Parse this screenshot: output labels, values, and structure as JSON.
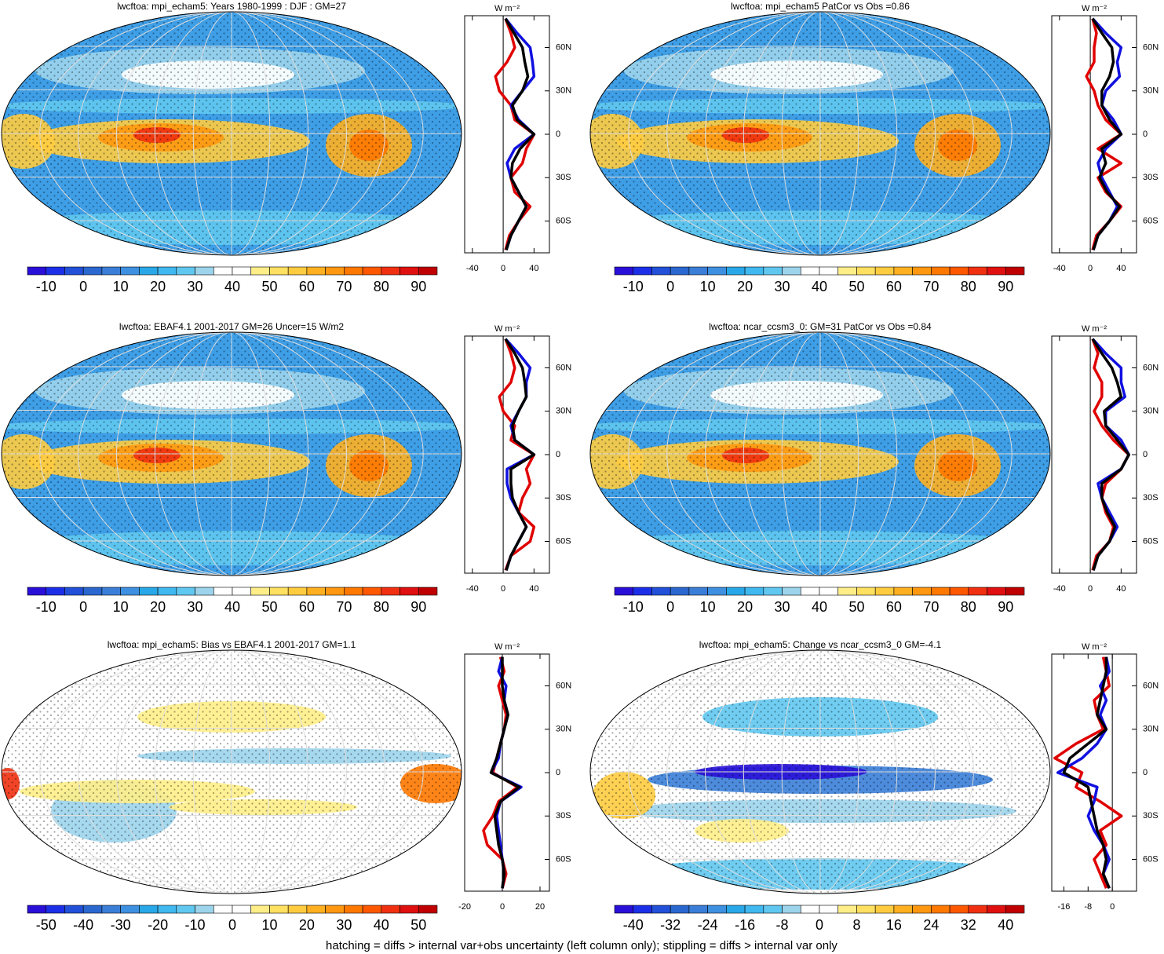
{
  "palette": [
    "#2a0fd8",
    "#1c2fe8",
    "#2250d8",
    "#2a68d0",
    "#3a7ed8",
    "#3e90e0",
    "#28a8e8",
    "#40b8f0",
    "#60c8f0",
    "#9cd4ec",
    "#ffffff",
    "#ffffff",
    "#ffee88",
    "#ffe060",
    "#ffcc40",
    "#ffb020",
    "#ff9810",
    "#ff7800",
    "#ff5800",
    "#f03010",
    "#e01010",
    "#c00000"
  ],
  "footer": "hatching = diffs > internal var+obs uncertainty (left column only); stippling = diffs > internal var only",
  "chart_data": [
    {
      "type": "map",
      "title": "lwcftoa: mpi_echam5: Years 1980-1999 : DJF : GM=27",
      "clim": [
        -15,
        95
      ],
      "cticks": [
        -10,
        0,
        10,
        20,
        30,
        40,
        50,
        60,
        70,
        80,
        90
      ],
      "profile": {
        "type": "line",
        "units": "W m⁻²",
        "xlim": [
          -50,
          60
        ],
        "xticks": [
          -40,
          0,
          40
        ],
        "ylim": [
          -82,
          82
        ],
        "yticks": [
          {
            "value": 60,
            "label": "60N"
          },
          {
            "value": 30,
            "label": "30N"
          },
          0,
          {
            "value": -30,
            "label": "30S"
          },
          {
            "value": -60,
            "label": "60S"
          }
        ],
        "lat": [
          80,
          70,
          60,
          50,
          40,
          30,
          20,
          10,
          0,
          -10,
          -20,
          -30,
          -40,
          -50,
          -60,
          -70,
          -80
        ],
        "series": [
          {
            "color": "#e00000",
            "values": [
              3,
              10,
              15,
              5,
              -10,
              -5,
              10,
              15,
              40,
              30,
              25,
              10,
              15,
              35,
              20,
              8,
              3
            ]
          },
          {
            "color": "#1010e0",
            "values": [
              3,
              18,
              35,
              38,
              40,
              25,
              10,
              20,
              40,
              15,
              5,
              10,
              20,
              30,
              20,
              10,
              4
            ]
          },
          {
            "color": "#000000",
            "values": [
              3,
              14,
              25,
              28,
              32,
              25,
              12,
              18,
              40,
              22,
              12,
              10,
              20,
              30,
              20,
              10,
              4
            ]
          }
        ]
      }
    },
    {
      "type": "map",
      "title": "lwcftoa: mpi_echam5 PatCor vs Obs =0.86",
      "clim": [
        -15,
        95
      ],
      "cticks": [
        -10,
        0,
        10,
        20,
        30,
        40,
        50,
        60,
        70,
        80,
        90
      ],
      "profile": {
        "type": "line",
        "units": "W m⁻²",
        "xlim": [
          -50,
          60
        ],
        "xticks": [
          -40,
          0,
          40
        ],
        "ylim": [
          -82,
          82
        ],
        "yticks": [
          {
            "value": 60,
            "label": "60N"
          },
          {
            "value": 30,
            "label": "30N"
          },
          0,
          {
            "value": -30,
            "label": "30S"
          },
          {
            "value": -60,
            "label": "60S"
          }
        ],
        "lat": [
          80,
          70,
          60,
          50,
          40,
          30,
          20,
          10,
          0,
          -10,
          -20,
          -30,
          -40,
          -50,
          -60,
          -70,
          -80
        ],
        "series": [
          {
            "color": "#e00000",
            "values": [
              3,
              8,
              5,
              5,
              -5,
              5,
              10,
              20,
              40,
              10,
              40,
              10,
              20,
              40,
              25,
              8,
              3
            ]
          },
          {
            "color": "#1010e0",
            "values": [
              3,
              20,
              40,
              35,
              38,
              20,
              15,
              30,
              40,
              20,
              10,
              15,
              25,
              35,
              25,
              10,
              4
            ]
          },
          {
            "color": "#000000",
            "values": [
              3,
              15,
              28,
              30,
              25,
              15,
              15,
              25,
              40,
              15,
              20,
              12,
              22,
              38,
              25,
              10,
              4
            ]
          }
        ]
      }
    },
    {
      "type": "map",
      "title": "lwcftoa: EBAF4.1 2001-2017 GM=26 Uncer=15 W/m2",
      "clim": [
        -15,
        95
      ],
      "cticks": [
        -10,
        0,
        10,
        20,
        30,
        40,
        50,
        60,
        70,
        80,
        90
      ],
      "profile": {
        "type": "line",
        "units": "W m⁻²",
        "xlim": [
          -50,
          60
        ],
        "xticks": [
          -40,
          0,
          40
        ],
        "ylim": [
          -82,
          82
        ],
        "yticks": [
          {
            "value": 60,
            "label": "60N"
          },
          {
            "value": 30,
            "label": "30N"
          },
          0,
          {
            "value": -30,
            "label": "30S"
          },
          {
            "value": -60,
            "label": "60S"
          }
        ],
        "lat": [
          80,
          70,
          60,
          50,
          40,
          30,
          20,
          10,
          0,
          -10,
          -20,
          -30,
          -40,
          -50,
          -60,
          -70,
          -80
        ],
        "series": [
          {
            "color": "#e00000",
            "values": [
              3,
              10,
              15,
              10,
              -5,
              0,
              15,
              10,
              40,
              30,
              35,
              25,
              20,
              40,
              35,
              10,
              3
            ]
          },
          {
            "color": "#1010e0",
            "values": [
              3,
              20,
              35,
              30,
              30,
              20,
              10,
              15,
              40,
              5,
              5,
              10,
              20,
              30,
              20,
              10,
              4
            ]
          },
          {
            "color": "#000000",
            "values": [
              3,
              15,
              25,
              28,
              30,
              20,
              12,
              15,
              40,
              10,
              10,
              12,
              20,
              30,
              20,
              10,
              4
            ]
          }
        ]
      }
    },
    {
      "type": "map",
      "title": "lwcftoa: ncar_ccsm3_0: GM=31 PatCor vs Obs =0.84",
      "clim": [
        -15,
        95
      ],
      "cticks": [
        -10,
        0,
        10,
        20,
        30,
        40,
        50,
        60,
        70,
        80,
        90
      ],
      "profile": {
        "type": "line",
        "units": "W m⁻²",
        "xlim": [
          -50,
          60
        ],
        "xticks": [
          -40,
          0,
          40
        ],
        "ylim": [
          -82,
          82
        ],
        "yticks": [
          {
            "value": 60,
            "label": "60N"
          },
          {
            "value": 30,
            "label": "30N"
          },
          0,
          {
            "value": -30,
            "label": "30S"
          },
          {
            "value": -60,
            "label": "60S"
          }
        ],
        "lat": [
          80,
          70,
          60,
          50,
          40,
          30,
          20,
          10,
          0,
          -10,
          -20,
          -30,
          -40,
          -50,
          -60,
          -70,
          -80
        ],
        "series": [
          {
            "color": "#e00000",
            "values": [
              3,
              10,
              5,
              15,
              15,
              5,
              15,
              30,
              50,
              40,
              20,
              15,
              20,
              30,
              25,
              8,
              3
            ]
          },
          {
            "color": "#1010e0",
            "values": [
              3,
              20,
              40,
              40,
              45,
              20,
              20,
              40,
              50,
              40,
              10,
              15,
              25,
              35,
              25,
              10,
              4
            ]
          },
          {
            "color": "#000000",
            "values": [
              3,
              15,
              28,
              35,
              40,
              18,
              20,
              35,
              50,
              40,
              15,
              15,
              22,
              32,
              25,
              10,
              4
            ]
          }
        ]
      }
    },
    {
      "type": "map",
      "title": "lwcftoa: mpi_echam5: Bias vs EBAF4.1 2001-2017 GM=1.1",
      "clim": [
        -55,
        55
      ],
      "cticks": [
        -50,
        -40,
        -30,
        -20,
        -10,
        0,
        10,
        20,
        30,
        40,
        50
      ],
      "profile": {
        "type": "line",
        "units": "W m⁻²",
        "xlim": [
          -20,
          25
        ],
        "xticks": [
          -20,
          0,
          20
        ],
        "ylim": [
          -82,
          82
        ],
        "yticks": [
          {
            "value": 60,
            "label": "60N"
          },
          {
            "value": 30,
            "label": "30N"
          },
          0,
          {
            "value": -30,
            "label": "30S"
          },
          {
            "value": -60,
            "label": "60S"
          }
        ],
        "lat": [
          80,
          70,
          60,
          50,
          40,
          30,
          20,
          10,
          0,
          -10,
          -20,
          -30,
          -40,
          -50,
          -60,
          -70,
          -80
        ],
        "series": [
          {
            "color": "#e00000",
            "values": [
              -1,
              1,
              -2,
              0,
              2,
              1,
              -1,
              -3,
              -5,
              8,
              -2,
              -5,
              -10,
              -8,
              0,
              2,
              0
            ]
          },
          {
            "color": "#1010e0",
            "values": [
              0,
              -2,
              2,
              1,
              3,
              1,
              -1,
              -2,
              -6,
              10,
              -1,
              -3,
              -2,
              -1,
              0,
              1,
              0
            ]
          },
          {
            "color": "#000000",
            "values": [
              0,
              0,
              0,
              1,
              3,
              1,
              -1,
              -3,
              -6,
              9,
              -1,
              -4,
              -3,
              -2,
              0,
              1,
              0
            ]
          }
        ]
      }
    },
    {
      "type": "map",
      "title": "lwcftoa: mpi_echam5: Change vs ncar_ccsm3_0 GM=-4.1",
      "clim": [
        -44,
        44
      ],
      "cticks": [
        -40,
        -32,
        -24,
        -16,
        -8,
        0,
        8,
        16,
        24,
        32,
        40
      ],
      "profile": {
        "type": "line",
        "units": "W m⁻²",
        "xlim": [
          -20,
          8
        ],
        "xticks": [
          -16,
          -8,
          0
        ],
        "ylim": [
          -82,
          82
        ],
        "yticks": [
          {
            "value": 60,
            "label": "60N"
          },
          {
            "value": 30,
            "label": "30N"
          },
          0,
          {
            "value": -30,
            "label": "30S"
          },
          {
            "value": -60,
            "label": "60S"
          }
        ],
        "lat": [
          80,
          70,
          60,
          50,
          40,
          30,
          20,
          10,
          0,
          -10,
          -20,
          -30,
          -40,
          -50,
          -60,
          -70,
          -80
        ],
        "series": [
          {
            "color": "#e00000",
            "values": [
              -3,
              -2,
              -1,
              -6,
              -5,
              -3,
              -12,
              -19,
              -10,
              -12,
              -4,
              3,
              -4,
              -2,
              -6,
              -4,
              -2
            ]
          },
          {
            "color": "#1010e0",
            "values": [
              -2,
              -1,
              -4,
              -2,
              -4,
              -2,
              -5,
              -10,
              -18,
              -5,
              -6,
              -8,
              -6,
              -3,
              -1,
              -3,
              -1
            ]
          },
          {
            "color": "#000000",
            "values": [
              -2,
              -2,
              -3,
              -4,
              -5,
              -2,
              -8,
              -14,
              -16,
              -8,
              -7,
              -6,
              -5,
              -3,
              -2,
              -3,
              -1
            ]
          }
        ]
      }
    }
  ]
}
